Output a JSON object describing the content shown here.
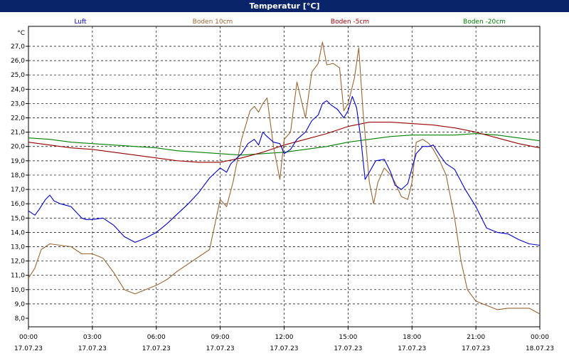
{
  "window": {
    "title": "Temperatur [°C]"
  },
  "chart_data": {
    "type": "line",
    "title": "Temperatur [°C]",
    "ylabel": "°C",
    "ylim": [
      7.5,
      27.8
    ],
    "y_ticks": [
      "8,0",
      "9,0",
      "10,0",
      "11,0",
      "12,0",
      "13,0",
      "14,0",
      "15,0",
      "16,0",
      "17,0",
      "18,0",
      "19,0",
      "20,0",
      "21,0",
      "22,0",
      "23,0",
      "24,0",
      "25,0",
      "26,0",
      "27,0"
    ],
    "x_ticks": [
      {
        "hour": 0,
        "time": "00:00",
        "date": "17.07.23"
      },
      {
        "hour": 3,
        "time": "03:00",
        "date": "17.07.23"
      },
      {
        "hour": 6,
        "time": "06:00",
        "date": "17.07.23"
      },
      {
        "hour": 9,
        "time": "09:00",
        "date": "17.07.23"
      },
      {
        "hour": 12,
        "time": "12:00",
        "date": "17.07.23"
      },
      {
        "hour": 15,
        "time": "15:00",
        "date": "17.07.23"
      },
      {
        "hour": 18,
        "time": "18:00",
        "date": "17.07.23"
      },
      {
        "hour": 21,
        "time": "21:00",
        "date": "17.07.23"
      },
      {
        "hour": 24,
        "time": "00:00",
        "date": "18.07.23"
      }
    ],
    "grid": true,
    "legend_position": "top",
    "series": [
      {
        "name": "Luft",
        "color": "#0000cc",
        "x": [
          0,
          0.3,
          0.5,
          0.8,
          1.0,
          1.2,
          1.5,
          2.0,
          2.5,
          2.7,
          3.0,
          3.5,
          4.0,
          4.5,
          5.0,
          5.5,
          6.0,
          6.5,
          7.0,
          7.5,
          8.0,
          8.5,
          9.0,
          9.3,
          9.5,
          10.0,
          10.3,
          10.6,
          10.8,
          11.0,
          11.2,
          11.5,
          11.8,
          12.0,
          12.3,
          12.6,
          13.0,
          13.3,
          13.6,
          13.8,
          14.0,
          14.2,
          14.5,
          14.8,
          15.0,
          15.2,
          15.4,
          15.6,
          15.8,
          16.0,
          16.3,
          16.7,
          17.0,
          17.2,
          17.5,
          17.8,
          18.0,
          18.2,
          18.5,
          18.8,
          19.0,
          19.3,
          19.6,
          20.0,
          20.5,
          21.0,
          21.5,
          22.0,
          22.5,
          23.0,
          23.5,
          24.0
        ],
        "values": [
          15.5,
          15.2,
          15.6,
          16.3,
          16.6,
          16.2,
          16.0,
          15.8,
          15.0,
          14.9,
          14.9,
          15.0,
          14.5,
          13.7,
          13.3,
          13.6,
          14.0,
          14.6,
          15.3,
          16.0,
          16.8,
          17.8,
          18.5,
          18.2,
          18.8,
          19.5,
          20.2,
          20.5,
          20.1,
          21.0,
          20.7,
          20.3,
          20.2,
          19.5,
          19.8,
          20.5,
          21.0,
          21.8,
          22.2,
          23.0,
          23.2,
          22.9,
          22.6,
          22.0,
          22.5,
          23.5,
          22.7,
          20.5,
          17.7,
          18.2,
          19.0,
          19.1,
          18.2,
          17.3,
          17.0,
          17.4,
          18.5,
          19.5,
          20.0,
          20.0,
          20.1,
          19.4,
          18.8,
          18.4,
          17.0,
          15.8,
          14.3,
          14.0,
          13.9,
          13.5,
          13.2,
          13.1
        ]
      },
      {
        "name": "Boden 10cm",
        "color": "#996633",
        "x": [
          0,
          0.3,
          0.6,
          1.0,
          1.5,
          2.0,
          2.5,
          3.0,
          3.5,
          4.0,
          4.5,
          5.0,
          5.5,
          6.0,
          6.5,
          7.0,
          7.5,
          8.0,
          8.5,
          9.0,
          9.3,
          9.6,
          10.0,
          10.4,
          10.6,
          10.8,
          11.0,
          11.2,
          11.5,
          11.8,
          12.0,
          12.3,
          12.6,
          13.0,
          13.3,
          13.6,
          13.8,
          14.0,
          14.3,
          14.6,
          14.8,
          15.0,
          15.3,
          15.5,
          15.7,
          16.0,
          16.2,
          16.4,
          16.7,
          17.0,
          17.2,
          17.5,
          17.8,
          18.0,
          18.2,
          18.5,
          18.8,
          19.0,
          19.3,
          19.6,
          20.0,
          20.3,
          20.6,
          21.0,
          21.5,
          22.0,
          22.5,
          23.0,
          23.5,
          24.0
        ],
        "values": [
          10.8,
          11.5,
          12.8,
          13.2,
          13.1,
          13.0,
          12.5,
          12.5,
          12.2,
          11.2,
          10.0,
          9.7,
          10.0,
          10.3,
          10.7,
          11.3,
          11.8,
          12.3,
          12.8,
          16.3,
          15.8,
          17.5,
          20.5,
          22.5,
          22.8,
          22.4,
          23.0,
          23.4,
          20.0,
          17.7,
          20.5,
          21.0,
          24.5,
          22.0,
          25.2,
          25.8,
          27.3,
          25.7,
          25.8,
          25.5,
          22.5,
          23.0,
          24.8,
          26.9,
          22.5,
          17.5,
          16.0,
          17.5,
          18.5,
          18.0,
          17.5,
          16.5,
          16.3,
          17.5,
          20.3,
          20.5,
          20.2,
          19.8,
          19.0,
          18.0,
          15.0,
          12.0,
          10.0,
          9.2,
          8.9,
          8.6,
          8.7,
          8.7,
          8.7,
          8.3
        ]
      },
      {
        "name": "Boden -5cm",
        "color": "#990000",
        "x": [
          0,
          1,
          2,
          3,
          4,
          5,
          6,
          7,
          8,
          9,
          10,
          11,
          12,
          13,
          14,
          15,
          16,
          17,
          18,
          19,
          20,
          21,
          22,
          23,
          24
        ],
        "values": [
          20.3,
          20.1,
          19.9,
          19.8,
          19.6,
          19.4,
          19.2,
          19.0,
          18.9,
          18.9,
          19.2,
          19.6,
          20.1,
          20.5,
          20.9,
          21.4,
          21.7,
          21.7,
          21.6,
          21.5,
          21.3,
          21.0,
          20.6,
          20.2,
          19.9
        ]
      },
      {
        "name": "Boden -20cm",
        "color": "#008000",
        "x": [
          0,
          1,
          2,
          3,
          4,
          5,
          6,
          7,
          8,
          9,
          10,
          11,
          12,
          13,
          14,
          15,
          16,
          17,
          18,
          19,
          20,
          21,
          22,
          23,
          24
        ],
        "values": [
          20.6,
          20.5,
          20.3,
          20.2,
          20.1,
          20.0,
          19.9,
          19.7,
          19.6,
          19.5,
          19.4,
          19.5,
          19.6,
          19.8,
          20.0,
          20.3,
          20.5,
          20.7,
          20.8,
          20.8,
          20.8,
          20.9,
          20.8,
          20.6,
          20.4
        ]
      }
    ]
  }
}
